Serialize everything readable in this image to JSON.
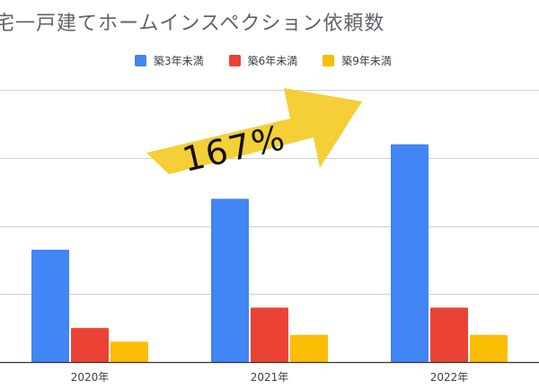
{
  "chart_data": {
    "type": "bar",
    "title": "宅一戸建てホームインスペクション依頼数",
    "categories": [
      "2020年",
      "2021年",
      "2022年"
    ],
    "series": [
      {
        "name": "築3年未満",
        "color": "#4285f4",
        "values": [
          1.65,
          2.4,
          3.2
        ]
      },
      {
        "name": "築6年未満",
        "color": "#ea4335",
        "values": [
          0.5,
          0.8,
          0.8
        ]
      },
      {
        "name": "築9年未満",
        "color": "#fbbc04",
        "values": [
          0.3,
          0.4,
          0.4
        ]
      }
    ],
    "ylim": [
      0,
      4
    ],
    "grid": true,
    "legend_position": "top",
    "annotation": {
      "text": "167%",
      "shape": "arrow",
      "color": "#f4cf37"
    }
  }
}
